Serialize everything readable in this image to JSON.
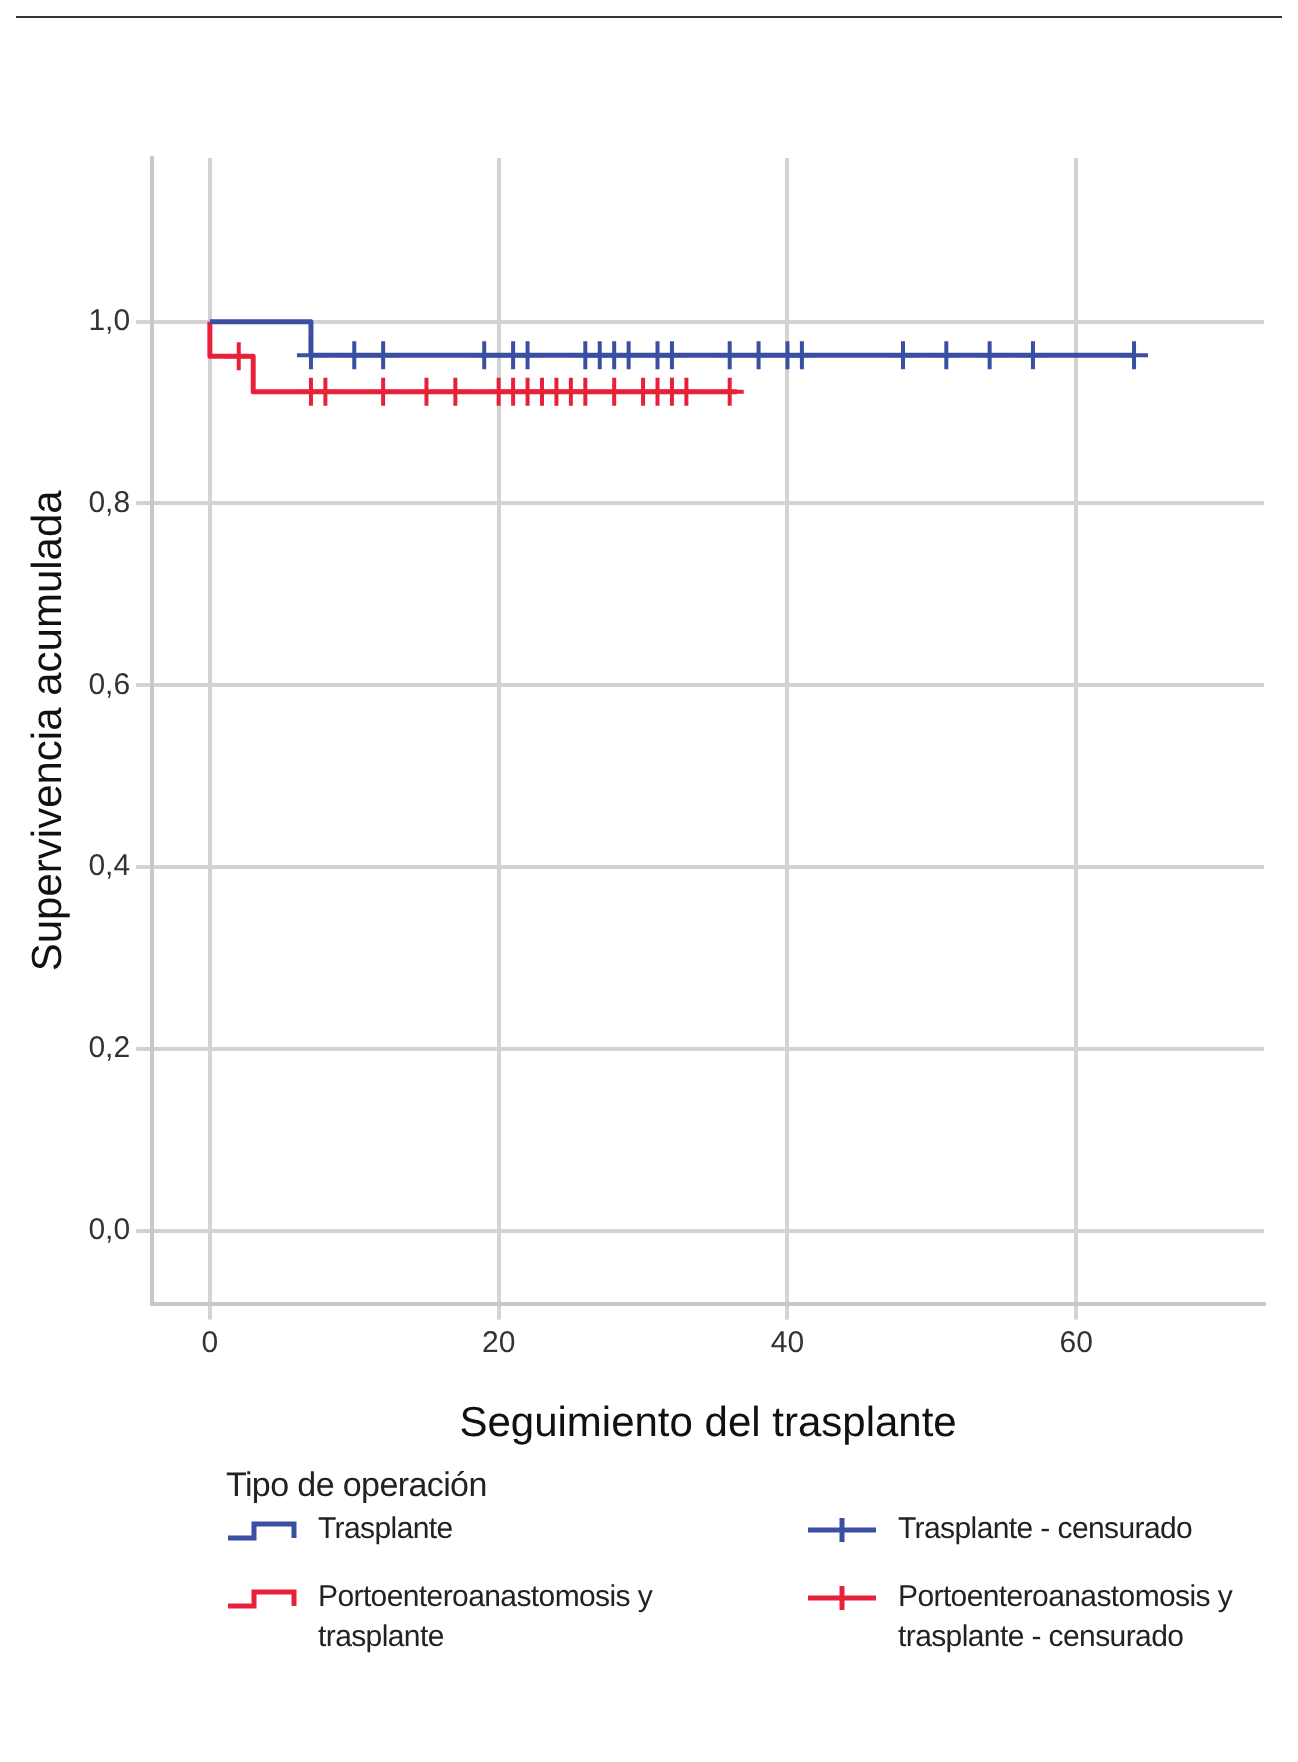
{
  "chart_data": {
    "type": "step",
    "xlabel": "Seguimiento del trasplante",
    "ylabel": "Supervivencia acumulada",
    "legend_title": "Tipo de operación",
    "legend": "bottom",
    "grid": true,
    "xlim": [
      -4,
      73
    ],
    "xticks": [
      0,
      20,
      40,
      60
    ],
    "ylim": [
      -0.08,
      1.18
    ],
    "yticks": [
      {
        "value": 0,
        "label": "0,0"
      },
      {
        "value": 0.2,
        "label": "0,2"
      },
      {
        "value": 0.4,
        "label": "0,4"
      },
      {
        "value": 0.6,
        "label": "0,6"
      },
      {
        "value": 0.8,
        "label": "0,8"
      },
      {
        "value": 1,
        "label": "1,0"
      }
    ],
    "series": [
      {
        "name": "Trasplante",
        "type": "step",
        "color": "#3a4ea2",
        "x": [
          0,
          7,
          64
        ],
        "values": [
          1,
          0.963,
          0.963
        ]
      },
      {
        "name": "Portoenteroanastomosis y trasplante",
        "type": "step",
        "color": "#e8213b",
        "x": [
          0,
          0,
          3,
          36.5
        ],
        "values": [
          1,
          0.962,
          0.923,
          0.923
        ]
      },
      {
        "name": "Trasplante - censurado",
        "type": "scatter",
        "marker": "cross",
        "color": "#3a4ea2",
        "x": [
          7,
          10,
          12,
          19,
          21,
          22,
          26,
          27,
          28,
          29,
          31,
          32,
          36,
          38,
          40,
          41,
          48,
          51,
          54,
          57,
          64
        ],
        "values": [
          0.963,
          0.963,
          0.963,
          0.963,
          0.963,
          0.963,
          0.963,
          0.963,
          0.963,
          0.963,
          0.963,
          0.963,
          0.963,
          0.963,
          0.963,
          0.963,
          0.963,
          0.963,
          0.963,
          0.963,
          0.963
        ]
      },
      {
        "name": "Portoenteroanastomosis y trasplante - censurado",
        "type": "scatter",
        "marker": "cross",
        "color": "#e8213b",
        "x": [
          2,
          7,
          8,
          12,
          15,
          17,
          20,
          21,
          22,
          23,
          24,
          25,
          26,
          28,
          30,
          31,
          32,
          33,
          36
        ],
        "values": [
          0.962,
          0.923,
          0.923,
          0.923,
          0.923,
          0.923,
          0.923,
          0.923,
          0.923,
          0.923,
          0.923,
          0.923,
          0.923,
          0.923,
          0.923,
          0.923,
          0.923,
          0.923,
          0.923
        ]
      }
    ]
  }
}
